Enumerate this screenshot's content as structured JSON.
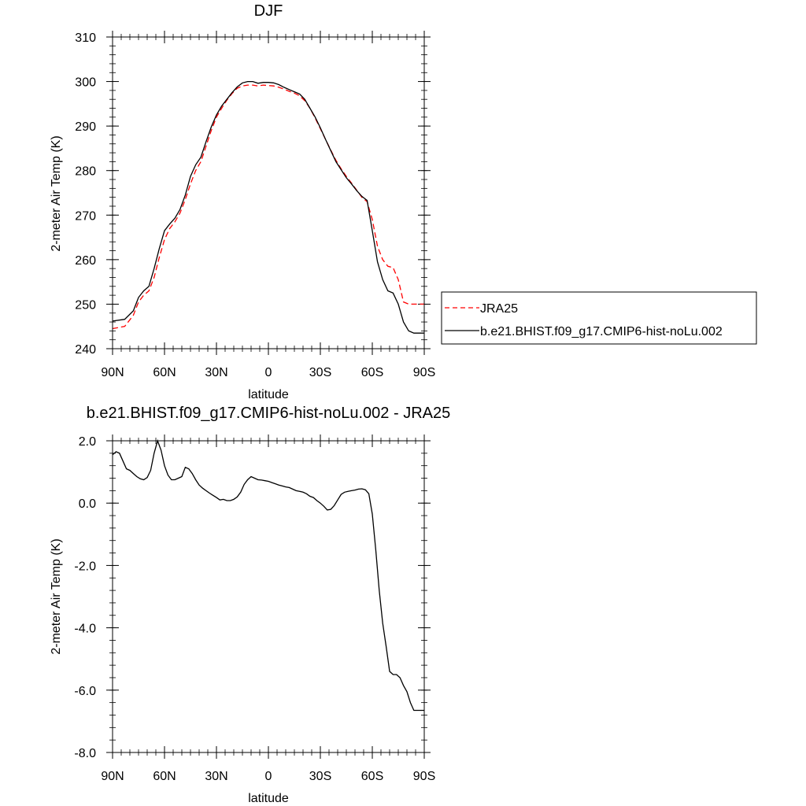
{
  "chart_data": [
    {
      "type": "line",
      "title": "DJF",
      "xlabel": "latitude",
      "ylabel": "2-meter Air Temp (K)",
      "xlim": [
        90,
        -90
      ],
      "ylim": [
        240,
        310
      ],
      "xticks": [
        {
          "value": 90,
          "label": "90N"
        },
        {
          "value": 60,
          "label": "60N"
        },
        {
          "value": 30,
          "label": "30N"
        },
        {
          "value": 0,
          "label": "0"
        },
        {
          "value": -30,
          "label": "30S"
        },
        {
          "value": -60,
          "label": "60S"
        },
        {
          "value": -90,
          "label": "90S"
        }
      ],
      "yticks": [
        {
          "value": 240,
          "label": "240"
        },
        {
          "value": 250,
          "label": "250"
        },
        {
          "value": 260,
          "label": "260"
        },
        {
          "value": 270,
          "label": "270"
        },
        {
          "value": 280,
          "label": "280"
        },
        {
          "value": 290,
          "label": "290"
        },
        {
          "value": 300,
          "label": "300"
        },
        {
          "value": 310,
          "label": "310"
        }
      ],
      "x": [
        90,
        83,
        78,
        75,
        72,
        69,
        66,
        63,
        60,
        57,
        54,
        51,
        48,
        45,
        42,
        39,
        36,
        33,
        30,
        27,
        24,
        21,
        18,
        15,
        12,
        9,
        6,
        3,
        0,
        -3,
        -6,
        -9,
        -12,
        -15,
        -18,
        -21,
        -24,
        -27,
        -30,
        -33,
        -36,
        -39,
        -42,
        -45,
        -48,
        -51,
        -54,
        -57,
        -60,
        -63,
        -66,
        -69,
        -72,
        -75,
        -78,
        -81,
        -84,
        -87,
        -90
      ],
      "series": [
        {
          "name": "JRA25",
          "color": "#ff0000",
          "dash": "dashed",
          "values": [
            244.5,
            245.0,
            247.5,
            250.5,
            252.0,
            253.0,
            256.0,
            260.5,
            264.5,
            267.0,
            268.5,
            270.5,
            273.5,
            277.0,
            280.0,
            282.0,
            285.5,
            289.0,
            292.0,
            294.0,
            295.8,
            297.3,
            298.5,
            299.0,
            299.2,
            299.2,
            299.0,
            299.2,
            299.1,
            299.0,
            298.7,
            298.3,
            297.8,
            297.4,
            296.8,
            295.7,
            294.0,
            291.8,
            289.4,
            287.0,
            284.6,
            282.3,
            280.4,
            278.7,
            277.2,
            275.6,
            274.0,
            273.0,
            269.0,
            263.0,
            260.0,
            258.5,
            258.2,
            255.5,
            250.5,
            250.0,
            250.0,
            250.0,
            250.0
          ]
        },
        {
          "name": "b.e21.BHIST.f09_g17.CMIP6-hist-noLu.002",
          "color": "#000000",
          "dash": "solid",
          "values": [
            246.2,
            246.6,
            248.5,
            251.5,
            253.0,
            254.0,
            258.0,
            262.5,
            266.5,
            268.0,
            269.3,
            271.3,
            274.5,
            278.7,
            281.3,
            283.0,
            286.5,
            289.8,
            292.5,
            294.5,
            296.0,
            297.5,
            298.8,
            299.7,
            300.0,
            300.0,
            299.6,
            299.8,
            299.8,
            299.7,
            299.3,
            298.7,
            298.2,
            297.7,
            297.2,
            296.0,
            294.0,
            292.0,
            289.6,
            287.0,
            284.5,
            282.0,
            280.2,
            278.4,
            277.0,
            275.5,
            274.2,
            273.3,
            266.5,
            259.5,
            255.5,
            253.0,
            252.5,
            250.0,
            246.0,
            244.0,
            243.5,
            243.5,
            243.5
          ]
        }
      ],
      "legend": {
        "placement": "right",
        "entries": [
          "JRA25",
          "b.e21.BHIST.f09_g17.CMIP6-hist-noLu.002"
        ]
      }
    },
    {
      "type": "line",
      "title": "b.e21.BHIST.f09_g17.CMIP6-hist-noLu.002 - JRA25",
      "xlabel": "latitude",
      "ylabel": "2-meter Air Temp (K)",
      "xlim": [
        90,
        -90
      ],
      "ylim": [
        -8,
        2
      ],
      "xticks": [
        {
          "value": 90,
          "label": "90N"
        },
        {
          "value": 60,
          "label": "60N"
        },
        {
          "value": 30,
          "label": "30N"
        },
        {
          "value": 0,
          "label": "0"
        },
        {
          "value": -30,
          "label": "30S"
        },
        {
          "value": -60,
          "label": "60S"
        },
        {
          "value": -90,
          "label": "90S"
        }
      ],
      "yticks": [
        {
          "value": 2,
          "label": "2.0"
        },
        {
          "value": 0,
          "label": "0.0"
        },
        {
          "value": -2,
          "label": "-2.0"
        },
        {
          "value": -4,
          "label": "-4.0"
        },
        {
          "value": -6,
          "label": "-6.0"
        },
        {
          "value": -8,
          "label": "-8.0"
        }
      ],
      "x": [
        90,
        88,
        86,
        84,
        82,
        80,
        78,
        76,
        74,
        72,
        70,
        68,
        66,
        64,
        62,
        60,
        58,
        56,
        54,
        52,
        50,
        48,
        46,
        44,
        42,
        40,
        38,
        36,
        34,
        32,
        30,
        28,
        26,
        24,
        22,
        20,
        18,
        16,
        14,
        12,
        10,
        8,
        6,
        4,
        2,
        0,
        -2,
        -4,
        -6,
        -8,
        -10,
        -12,
        -14,
        -16,
        -18,
        -20,
        -22,
        -24,
        -26,
        -28,
        -30,
        -32,
        -34,
        -36,
        -38,
        -40,
        -42,
        -44,
        -46,
        -48,
        -50,
        -52,
        -54,
        -56,
        -58,
        -60,
        -62,
        -64,
        -66,
        -68,
        -70,
        -72,
        -74,
        -76,
        -78,
        -80,
        -82,
        -84,
        -86,
        -88,
        -90
      ],
      "series": [
        {
          "name": "",
          "color": "#000000",
          "dash": "solid",
          "values": [
            1.55,
            1.65,
            1.6,
            1.35,
            1.1,
            1.05,
            0.95,
            0.85,
            0.78,
            0.75,
            0.82,
            1.05,
            1.6,
            2.0,
            1.7,
            1.2,
            0.9,
            0.75,
            0.75,
            0.8,
            0.85,
            1.15,
            1.1,
            0.95,
            0.75,
            0.58,
            0.48,
            0.4,
            0.32,
            0.25,
            0.18,
            0.1,
            0.12,
            0.08,
            0.08,
            0.12,
            0.2,
            0.35,
            0.6,
            0.75,
            0.85,
            0.8,
            0.75,
            0.74,
            0.72,
            0.7,
            0.66,
            0.62,
            0.58,
            0.55,
            0.52,
            0.5,
            0.45,
            0.4,
            0.38,
            0.35,
            0.3,
            0.22,
            0.18,
            0.08,
            0.0,
            -0.1,
            -0.22,
            -0.2,
            -0.08,
            0.1,
            0.28,
            0.35,
            0.38,
            0.4,
            0.42,
            0.45,
            0.46,
            0.43,
            0.3,
            -0.35,
            -1.5,
            -2.8,
            -3.85,
            -4.6,
            -5.4,
            -5.5,
            -5.5,
            -5.6,
            -5.85,
            -6.05,
            -6.4,
            -6.65,
            -6.65,
            -6.65,
            -6.65
          ]
        }
      ]
    }
  ]
}
